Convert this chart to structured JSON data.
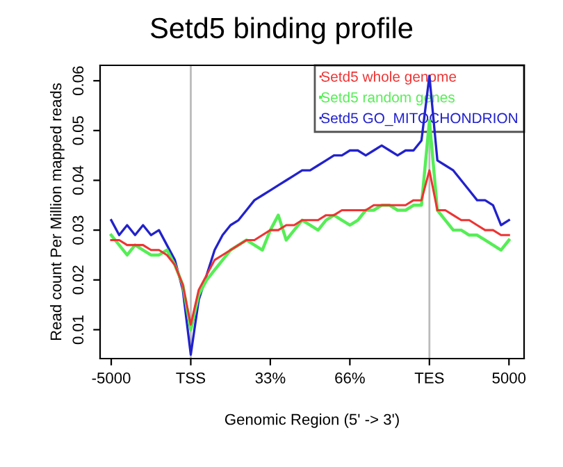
{
  "chart_data": {
    "type": "line",
    "title": "Setd5 binding profile",
    "xlabel": "Genomic Region (5' -> 3')",
    "ylabel": "Read count Per Million mapped reads",
    "categories": [
      "-5000",
      null,
      null,
      null,
      null,
      null,
      null,
      null,
      null,
      null,
      "TSS",
      null,
      null,
      null,
      null,
      null,
      null,
      null,
      null,
      null,
      "33%",
      null,
      null,
      null,
      null,
      null,
      null,
      null,
      null,
      null,
      "66%",
      null,
      null,
      null,
      null,
      null,
      null,
      null,
      null,
      null,
      "TES",
      null,
      null,
      null,
      null,
      null,
      null,
      null,
      null,
      null,
      "5000"
    ],
    "ylim": [
      0.0042,
      0.0631
    ],
    "yticks": [
      0.01,
      0.02,
      0.03,
      0.04,
      0.05,
      0.06
    ],
    "grid": false,
    "legend": "top right",
    "marker": "none",
    "line_style": "solid",
    "ref_lines": [
      {
        "axis": "x",
        "value": "TSS",
        "color": "#bbbbbb"
      },
      {
        "axis": "x",
        "value": "TES",
        "color": "#bbbbbb"
      }
    ],
    "series": [
      {
        "name": "Setd5 whole genome",
        "color": "#ee3333",
        "values": [
          0.028,
          0.028,
          0.027,
          0.027,
          0.027,
          0.026,
          0.026,
          0.025,
          0.023,
          0.019,
          0.011,
          0.018,
          0.021,
          0.024,
          0.025,
          0.026,
          0.027,
          0.028,
          0.028,
          0.029,
          0.03,
          0.03,
          0.031,
          0.031,
          0.032,
          0.032,
          0.032,
          0.033,
          0.033,
          0.034,
          0.034,
          0.034,
          0.034,
          0.035,
          0.035,
          0.035,
          0.035,
          0.035,
          0.036,
          0.036,
          0.042,
          0.034,
          0.034,
          0.033,
          0.032,
          0.032,
          0.031,
          0.03,
          0.03,
          0.029,
          0.029
        ]
      },
      {
        "name": "Setd5 random genes",
        "color": "#55ee55",
        "values": [
          0.029,
          0.027,
          0.025,
          0.027,
          0.026,
          0.025,
          0.025,
          0.026,
          0.023,
          0.019,
          0.01,
          0.017,
          0.02,
          0.022,
          0.024,
          0.026,
          0.027,
          0.028,
          0.027,
          0.026,
          0.03,
          0.033,
          0.028,
          0.03,
          0.032,
          0.031,
          0.03,
          0.032,
          0.033,
          0.032,
          0.031,
          0.032,
          0.034,
          0.034,
          0.035,
          0.035,
          0.034,
          0.034,
          0.035,
          0.035,
          0.052,
          0.034,
          0.032,
          0.03,
          0.03,
          0.029,
          0.029,
          0.028,
          0.027,
          0.026,
          0.028
        ]
      },
      {
        "name": "Setd5 GO_MITOCHONDRION",
        "color": "#2222cc",
        "values": [
          0.032,
          0.029,
          0.031,
          0.029,
          0.031,
          0.029,
          0.03,
          0.027,
          0.024,
          0.018,
          0.005,
          0.016,
          0.021,
          0.026,
          0.029,
          0.031,
          0.032,
          0.034,
          0.036,
          0.037,
          0.038,
          0.039,
          0.04,
          0.041,
          0.042,
          0.042,
          0.043,
          0.044,
          0.045,
          0.045,
          0.046,
          0.046,
          0.045,
          0.046,
          0.047,
          0.046,
          0.045,
          0.046,
          0.046,
          0.048,
          0.061,
          0.044,
          0.043,
          0.042,
          0.04,
          0.038,
          0.036,
          0.036,
          0.035,
          0.031,
          0.032
        ]
      }
    ]
  }
}
